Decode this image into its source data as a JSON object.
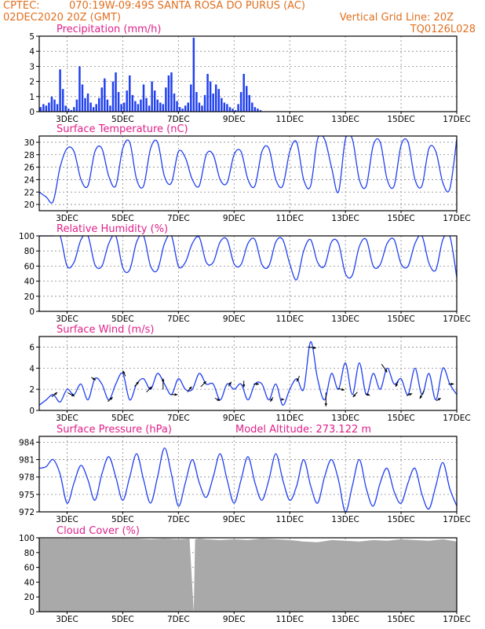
{
  "header": {
    "source": "CPTEC:",
    "location": "070:19W-09:49S  SANTA ROSA DO PURUS (AC)",
    "run": "02DEC2020 20Z (GMT)",
    "grid_note": "Vertical Grid Line: 20Z",
    "code": "TQ0126L028"
  },
  "colors": {
    "header": "#e07020",
    "panel_title": "#e0208a",
    "series": "#2040f0",
    "cloud": "#a9a9a9",
    "grid": "#888888"
  },
  "x_ticks": [
    "3DEC",
    "5DEC",
    "7DEC",
    "9DEC",
    "11DEC",
    "13DEC",
    "15DEC",
    "17DEC"
  ],
  "x_tick_days": [
    3,
    5,
    7,
    9,
    11,
    13,
    15,
    17
  ],
  "chart_data": [
    {
      "id": "precip",
      "type": "bar",
      "title": "Precipitation (mm/h)",
      "ylim": [
        0,
        5
      ],
      "yticks": [
        0,
        1,
        2,
        3,
        4,
        5
      ],
      "xlim": [
        2.0,
        17.0
      ],
      "x_unit": "day of December 2020",
      "x": [
        2.05,
        2.15,
        2.25,
        2.35,
        2.45,
        2.55,
        2.65,
        2.75,
        2.85,
        2.95,
        3.05,
        3.15,
        3.25,
        3.35,
        3.45,
        3.55,
        3.65,
        3.75,
        3.85,
        3.95,
        4.05,
        4.15,
        4.25,
        4.35,
        4.45,
        4.55,
        4.65,
        4.75,
        4.85,
        4.95,
        5.05,
        5.15,
        5.25,
        5.35,
        5.45,
        5.55,
        5.65,
        5.75,
        5.85,
        5.95,
        6.05,
        6.15,
        6.25,
        6.35,
        6.45,
        6.55,
        6.65,
        6.75,
        6.85,
        6.95,
        7.05,
        7.15,
        7.25,
        7.35,
        7.45,
        7.55,
        7.65,
        7.75,
        7.85,
        7.95,
        8.05,
        8.15,
        8.25,
        8.35,
        8.45,
        8.55,
        8.65,
        8.75,
        8.85,
        8.95,
        9.05,
        9.15,
        9.25,
        9.35,
        9.45,
        9.55,
        9.65,
        9.75,
        9.85,
        9.95,
        10.05,
        10.15,
        10.25,
        10.35,
        10.45,
        10.55,
        10.65,
        10.75,
        10.85,
        10.95,
        11.05,
        11.15,
        11.25,
        11.35,
        11.45,
        11.55,
        11.65,
        11.75,
        11.85,
        11.95,
        12.05,
        12.15,
        12.25,
        12.35,
        12.45,
        12.55,
        12.65,
        12.75,
        12.85,
        12.95,
        13.05,
        13.15,
        13.25,
        13.35,
        13.45,
        13.55,
        13.65,
        13.75,
        13.85,
        13.95,
        14.05,
        14.15,
        14.25,
        14.35,
        14.45,
        14.55,
        14.65,
        14.75,
        14.85,
        14.95,
        15.05,
        15.15,
        15.25,
        15.35,
        15.45,
        15.55,
        15.65,
        15.75,
        15.85,
        15.95,
        16.05,
        16.15,
        16.25,
        16.35,
        16.45,
        16.55,
        16.65,
        16.75,
        16.85,
        16.95
      ],
      "values": [
        0.3,
        0.5,
        0.4,
        0.6,
        1.0,
        0.8,
        0.5,
        2.8,
        1.5,
        0.4,
        0.2,
        0.1,
        0.3,
        0.8,
        3.0,
        1.8,
        0.9,
        1.2,
        0.6,
        0.3,
        0.5,
        0.9,
        1.6,
        2.2,
        0.8,
        0.4,
        2.0,
        2.6,
        1.3,
        0.5,
        0.6,
        1.4,
        2.4,
        1.1,
        0.7,
        0.5,
        0.8,
        1.8,
        0.9,
        0.4,
        2.0,
        1.4,
        0.8,
        0.6,
        0.5,
        1.6,
        2.4,
        2.6,
        1.2,
        0.7,
        0.3,
        0.2,
        0.4,
        0.6,
        1.8,
        4.9,
        1.3,
        0.6,
        0.4,
        1.1,
        2.5,
        2.0,
        1.2,
        1.8,
        1.5,
        0.9,
        0.6,
        0.5,
        0.3,
        0.2,
        0.1,
        0.5,
        1.3,
        2.5,
        1.7,
        1.1,
        0.6,
        0.3,
        0.2,
        0.1,
        0.0,
        0.0,
        0.0,
        0.0,
        0.0,
        0.0,
        0.0,
        0.0,
        0.0,
        0.0,
        0.0,
        0.0,
        0.0,
        0.0,
        0.0,
        0.0,
        0.0,
        0.0,
        0.0,
        0.0,
        0.0,
        0.0,
        0.0,
        0.0,
        0.0,
        0.0,
        0.0,
        0.0,
        0.0,
        0.0,
        0.0,
        0.0,
        0.0,
        0.0,
        0.0,
        0.0,
        0.0,
        0.0,
        0.0,
        0.0,
        0.0,
        0.0,
        0.0,
        0.0,
        0.0,
        0.0,
        0.0,
        0.0,
        0.0,
        0.0,
        0.0,
        0.0,
        0.0,
        0.0,
        0.0,
        0.0,
        0.0,
        0.0,
        0.0,
        0.0,
        0.0,
        0.0,
        0.0,
        0.0,
        0.0,
        0.0,
        0.0,
        0.0,
        0.0,
        0.0
      ]
    },
    {
      "id": "temp",
      "type": "line",
      "title": "Surface Temperature (nC)",
      "ylim": [
        19,
        31
      ],
      "yticks": [
        20,
        22,
        24,
        26,
        28,
        30
      ],
      "xlim": [
        2.0,
        17.0
      ],
      "x": [
        2.0,
        2.25,
        2.5,
        2.75,
        3.0,
        3.25,
        3.5,
        3.75,
        4.0,
        4.25,
        4.5,
        4.75,
        5.0,
        5.25,
        5.5,
        5.75,
        6.0,
        6.25,
        6.5,
        6.75,
        7.0,
        7.25,
        7.5,
        7.75,
        8.0,
        8.25,
        8.5,
        8.75,
        9.0,
        9.25,
        9.5,
        9.75,
        10.0,
        10.25,
        10.5,
        10.75,
        11.0,
        11.25,
        11.5,
        11.75,
        12.0,
        12.25,
        12.5,
        12.75,
        13.0,
        13.25,
        13.5,
        13.75,
        14.0,
        14.25,
        14.5,
        14.75,
        15.0,
        15.25,
        15.5,
        15.75,
        16.0,
        16.25,
        16.5,
        16.75,
        17.0
      ],
      "values": [
        22.0,
        21.2,
        20.5,
        26.0,
        29.0,
        28.5,
        24.0,
        23.0,
        28.5,
        29.0,
        24.5,
        23.0,
        29.0,
        30.0,
        24.0,
        23.0,
        29.0,
        30.0,
        24.5,
        23.5,
        28.5,
        27.5,
        24.0,
        23.0,
        28.0,
        28.0,
        24.0,
        23.5,
        28.0,
        28.5,
        24.0,
        23.0,
        28.5,
        29.0,
        24.0,
        23.0,
        28.5,
        30.0,
        24.0,
        23.0,
        30.5,
        30.5,
        26.0,
        22.0,
        30.5,
        30.5,
        24.0,
        23.0,
        29.5,
        30.0,
        24.0,
        23.0,
        29.5,
        30.0,
        24.0,
        23.0,
        29.0,
        28.5,
        23.5,
        22.5,
        30.5
      ]
    },
    {
      "id": "rh",
      "type": "line",
      "title": "Relative Humidity (%)",
      "ylim": [
        0,
        100
      ],
      "yticks": [
        0,
        20,
        40,
        60,
        80,
        100
      ],
      "xlim": [
        2.0,
        17.0
      ],
      "x": [
        2.0,
        2.25,
        2.5,
        2.75,
        3.0,
        3.25,
        3.5,
        3.75,
        4.0,
        4.25,
        4.5,
        4.75,
        5.0,
        5.25,
        5.5,
        5.75,
        6.0,
        6.25,
        6.5,
        6.75,
        7.0,
        7.25,
        7.5,
        7.75,
        8.0,
        8.25,
        8.5,
        8.75,
        9.0,
        9.25,
        9.5,
        9.75,
        10.0,
        10.25,
        10.5,
        10.75,
        11.0,
        11.25,
        11.5,
        11.75,
        12.0,
        12.25,
        12.5,
        12.75,
        13.0,
        13.25,
        13.5,
        13.75,
        14.0,
        14.25,
        14.5,
        14.75,
        15.0,
        15.25,
        15.5,
        15.75,
        16.0,
        16.25,
        16.5,
        16.75,
        17.0
      ],
      "values": [
        100,
        100,
        100,
        100,
        60,
        65,
        95,
        100,
        62,
        60,
        90,
        100,
        58,
        55,
        92,
        100,
        60,
        55,
        90,
        100,
        60,
        65,
        90,
        98,
        65,
        65,
        92,
        95,
        63,
        62,
        90,
        95,
        62,
        60,
        92,
        95,
        63,
        42,
        80,
        95,
        65,
        60,
        92,
        90,
        50,
        48,
        86,
        95,
        60,
        62,
        90,
        95,
        63,
        60,
        90,
        100,
        64,
        55,
        95,
        100,
        45
      ]
    },
    {
      "id": "wind",
      "type": "line",
      "title": "Surface Wind (m/s)",
      "ylim": [
        0,
        7
      ],
      "yticks": [
        0,
        2,
        4,
        6
      ],
      "xlim": [
        2.0,
        17.0
      ],
      "x": [
        2.0,
        2.25,
        2.5,
        2.75,
        3.0,
        3.25,
        3.5,
        3.75,
        4.0,
        4.25,
        4.5,
        4.75,
        5.0,
        5.25,
        5.5,
        5.75,
        6.0,
        6.25,
        6.5,
        6.75,
        7.0,
        7.25,
        7.5,
        7.75,
        8.0,
        8.25,
        8.5,
        8.75,
        9.0,
        9.25,
        9.5,
        9.75,
        10.0,
        10.25,
        10.5,
        10.75,
        11.0,
        11.25,
        11.5,
        11.75,
        12.0,
        12.25,
        12.5,
        12.75,
        13.0,
        13.25,
        13.5,
        13.75,
        14.0,
        14.25,
        14.5,
        14.75,
        15.0,
        15.25,
        15.5,
        15.75,
        16.0,
        16.25,
        16.5,
        16.75,
        17.0
      ],
      "values": [
        0.5,
        1.0,
        1.5,
        0.8,
        2.0,
        1.5,
        2.5,
        1.0,
        3.0,
        2.5,
        1.0,
        2.5,
        3.5,
        1.0,
        2.5,
        3.0,
        2.0,
        3.5,
        2.5,
        1.5,
        3.0,
        2.0,
        2.0,
        3.5,
        2.5,
        2.5,
        1.0,
        2.5,
        2.0,
        2.5,
        1.0,
        2.5,
        2.5,
        1.0,
        2.5,
        0.5,
        2.0,
        3.0,
        2.0,
        6.5,
        3.0,
        1.0,
        3.5,
        2.0,
        4.5,
        1.5,
        4.5,
        1.5,
        3.5,
        2.0,
        4.0,
        2.5,
        3.0,
        1.5,
        4.0,
        1.5,
        3.5,
        1.0,
        4.0,
        2.5,
        1.5
      ],
      "arrows": {
        "x": [
          2.55,
          3.15,
          3.95,
          4.55,
          5.05,
          5.5,
          5.95,
          6.45,
          6.85,
          7.4,
          7.9,
          8.4,
          8.85,
          9.35,
          9.8,
          10.35,
          10.75,
          11.3,
          11.8,
          12.3,
          12.85,
          13.35,
          13.8,
          14.4,
          14.85,
          15.3,
          15.75,
          16.35,
          16.8
        ],
        "u": [
          1.0,
          1.2,
          0.8,
          0.9,
          -0.5,
          0.8,
          1.0,
          0.0,
          1.2,
          0.8,
          1.0,
          0.9,
          0.5,
          0.0,
          1.0,
          -0.5,
          0.5,
          -0.5,
          1.5,
          0.0,
          1.2,
          -0.8,
          0.8,
          1.0,
          -0.5,
          1.0,
          -0.8,
          0.8,
          1.0
        ],
        "v": [
          0.8,
          -0.6,
          -0.5,
          0.8,
          1.0,
          0.9,
          1.0,
          2.0,
          0.0,
          1.0,
          1.0,
          -0.5,
          0.8,
          -1.2,
          0.0,
          -0.8,
          0.0,
          -1.0,
          -0.2,
          -2.5,
          -0.3,
          -0.9,
          -0.3,
          -1.5,
          -1.0,
          0.4,
          -1.5,
          0.5,
          0.0
        ]
      }
    },
    {
      "id": "pres",
      "type": "line",
      "title": "Surface Pressure (hPa)",
      "subtitle": "Model Altitude: 273.122 m",
      "ylim": [
        972,
        985
      ],
      "yticks": [
        972,
        975,
        978,
        981,
        984
      ],
      "xlim": [
        2.0,
        17.0
      ],
      "x": [
        2.0,
        2.25,
        2.5,
        2.75,
        3.0,
        3.25,
        3.5,
        3.75,
        4.0,
        4.25,
        4.5,
        4.75,
        5.0,
        5.25,
        5.5,
        5.75,
        6.0,
        6.25,
        6.5,
        6.75,
        7.0,
        7.25,
        7.5,
        7.75,
        8.0,
        8.25,
        8.5,
        8.75,
        9.0,
        9.25,
        9.5,
        9.75,
        10.0,
        10.25,
        10.5,
        10.75,
        11.0,
        11.25,
        11.5,
        11.75,
        12.0,
        12.25,
        12.5,
        12.75,
        13.0,
        13.25,
        13.5,
        13.75,
        14.0,
        14.25,
        14.5,
        14.75,
        15.0,
        15.25,
        15.5,
        15.75,
        16.0,
        16.25,
        16.5,
        16.75,
        17.0
      ],
      "values": [
        979.5,
        979.8,
        981.0,
        978.5,
        973.5,
        977.0,
        980.0,
        977.5,
        974.0,
        978.5,
        981.5,
        978.0,
        974.0,
        978.0,
        982.0,
        977.5,
        973.5,
        978.0,
        983.0,
        978.5,
        973.0,
        977.0,
        981.0,
        977.0,
        974.5,
        978.0,
        982.0,
        977.5,
        973.5,
        977.5,
        981.5,
        977.0,
        974.0,
        977.5,
        982.0,
        977.5,
        974.0,
        976.5,
        981.0,
        976.5,
        973.5,
        978.0,
        981.0,
        977.5,
        972.0,
        976.5,
        981.0,
        976.0,
        973.0,
        977.0,
        979.5,
        975.5,
        973.5,
        977.0,
        979.5,
        975.0,
        972.5,
        976.5,
        980.5,
        976.0,
        973.0
      ]
    },
    {
      "id": "cloud",
      "type": "area",
      "title": "Cloud Cover (%)",
      "ylim": [
        0,
        100
      ],
      "yticks": [
        0,
        20,
        40,
        60,
        80,
        100
      ],
      "xlim": [
        2.0,
        17.0
      ],
      "x": [
        2.0,
        2.5,
        3.0,
        3.5,
        4.0,
        4.5,
        5.0,
        5.5,
        6.0,
        6.5,
        7.0,
        7.4,
        7.55,
        7.6,
        7.75,
        8.0,
        8.5,
        9.0,
        9.5,
        10.0,
        10.5,
        11.0,
        11.5,
        12.0,
        12.5,
        13.0,
        13.5,
        14.0,
        14.5,
        15.0,
        15.5,
        16.0,
        16.5,
        17.0
      ],
      "values": [
        99,
        99,
        99,
        99,
        99,
        99,
        99,
        99,
        98,
        99,
        98,
        99,
        0,
        98,
        99,
        98,
        97,
        98,
        97,
        99,
        98,
        97,
        95,
        94,
        97,
        96,
        95,
        97,
        96,
        98,
        97,
        96,
        98,
        95
      ]
    }
  ]
}
